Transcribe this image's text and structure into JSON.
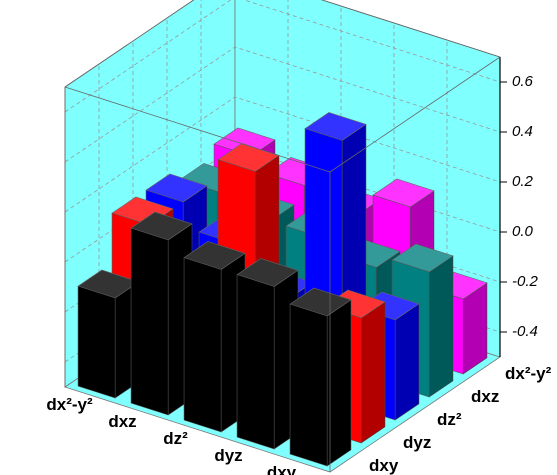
{
  "chart_data": {
    "type": "bar3d",
    "categories": [
      "dx²-y²",
      "dxz",
      "dz²",
      "dyz",
      "dxy"
    ],
    "series": [
      {
        "name": "dxy",
        "color": "#000000",
        "values": [
          -0.1,
          0.2,
          0.15,
          0.15,
          0.1
        ]
      },
      {
        "name": "dyz",
        "color": "#ff0000",
        "values": [
          0.1,
          -0.1,
          0.45,
          -0.1,
          0.0
        ]
      },
      {
        "name": "dz²",
        "color": "#0000ff",
        "values": [
          0.1,
          0.0,
          -0.15,
          0.55,
          -0.1
        ]
      },
      {
        "name": "dxz",
        "color": "#008080",
        "values": [
          0.05,
          0.0,
          0.0,
          -0.05,
          0.0
        ]
      },
      {
        "name": "dx²-y²",
        "color": "#ff00ff",
        "values": [
          0.1,
          0.05,
          0.0,
          0.1,
          -0.2
        ]
      }
    ],
    "zlim": [
      -0.5,
      0.7
    ],
    "zticks": [
      -0.4,
      -0.2,
      {
        "value": 0,
        "label": "0.0"
      },
      0.2,
      0.4,
      0.6
    ],
    "grid": true
  }
}
